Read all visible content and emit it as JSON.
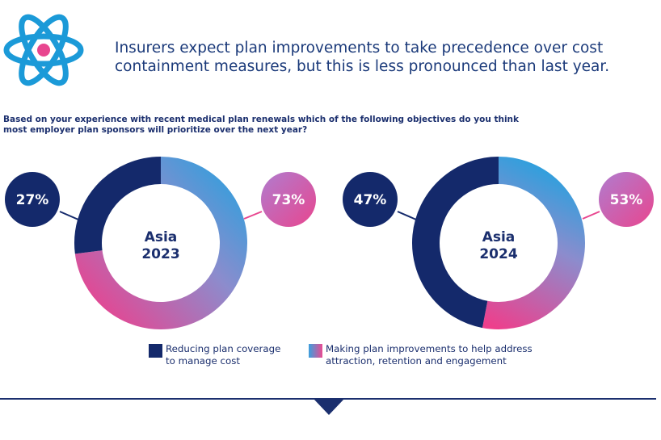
{
  "header": {
    "icon": "atom-icon",
    "headline": "Insurers expect plan improvements to take precedence over cost containment measures, but this is less pronounced than last year.",
    "question": "Based on your experience with recent medical plan renewals which of the following objectives do you think most employer plan sponsors will prioritize over the next year?"
  },
  "colors": {
    "navy": "#14296b",
    "gradient_start": "#1fa3e0",
    "gradient_mid": "#7f8fd0",
    "gradient_end": "#ec3f8e",
    "atom": "#1b9ad8",
    "atom_nucleus": "#e8468f"
  },
  "chart_data": [
    {
      "type": "pie",
      "style": "donut",
      "title": "Asia 2023",
      "title_line1": "Asia",
      "title_line2": "2023",
      "categories": [
        "Reducing plan coverage to manage cost",
        "Making plan improvements to help address attraction, retention and engagement"
      ],
      "values": [
        27,
        73
      ],
      "labels": [
        "27%",
        "73%"
      ]
    },
    {
      "type": "pie",
      "style": "donut",
      "title": "Asia 2024",
      "title_line1": "Asia",
      "title_line2": "2024",
      "categories": [
        "Reducing plan coverage to manage cost",
        "Making plan improvements to help address attraction, retention and engagement"
      ],
      "values": [
        47,
        53
      ],
      "labels": [
        "47%",
        "53%"
      ]
    }
  ],
  "legend": {
    "items": [
      {
        "line1": "Reducing plan coverage",
        "line2": "to manage cost"
      },
      {
        "line1": "Making plan improvements to help address",
        "line2": "attraction, retention and engagement"
      }
    ]
  }
}
